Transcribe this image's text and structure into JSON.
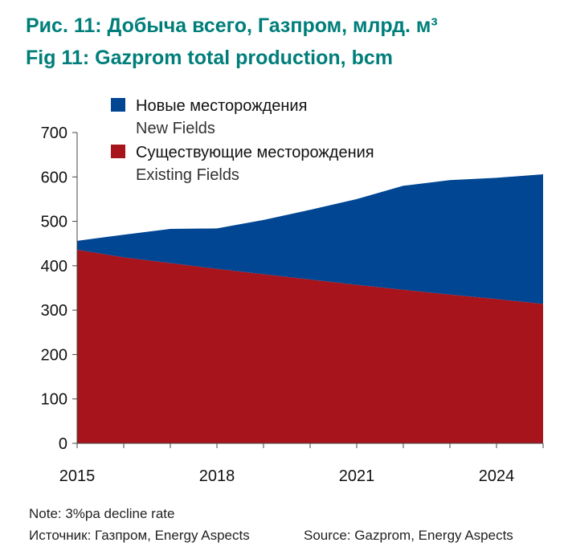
{
  "header": {
    "title_ru": "Рис. 11: Добыча всего, Газпром, млрд.  м³",
    "title_en": "Fig 11: Gazprom total production, bcm"
  },
  "footer": {
    "note": "Note: 3%pa decline rate",
    "source_ru": "Источник: Газпром, Energy Aspects",
    "source_en": "Source: Gazprom, Energy Aspects"
  },
  "colors": {
    "title": "#007e7a",
    "new_fields": "#004693",
    "existing_fields": "#a8141c",
    "axis": "#444444",
    "text": "#222222"
  },
  "chart_data": {
    "type": "area",
    "stacked": true,
    "x": [
      2015,
      2016,
      2017,
      2018,
      2019,
      2020,
      2021,
      2022,
      2023,
      2024,
      2025
    ],
    "xticks": [
      "2015",
      "2018",
      "2021",
      "2024"
    ],
    "xtick_values": [
      2015,
      2018,
      2021,
      2024
    ],
    "ylim": [
      0,
      700
    ],
    "yticks": [
      "0",
      "100",
      "200",
      "300",
      "400",
      "500",
      "600",
      "700"
    ],
    "ytick_values": [
      0,
      100,
      200,
      300,
      400,
      500,
      600,
      700
    ],
    "legend_position": "top-left",
    "series": [
      {
        "name_ru": "Существующие месторождения",
        "name_en": "Existing Fields",
        "color": "#a8141c",
        "values": [
          436,
          419,
          406,
          393,
          381,
          369,
          357,
          346,
          335,
          325,
          314
        ]
      },
      {
        "name_ru": "Новые месторождения",
        "name_en": "New Fields",
        "color": "#004693",
        "values": [
          20,
          51,
          77,
          91,
          122,
          157,
          193,
          234,
          258,
          273,
          292
        ]
      }
    ]
  }
}
